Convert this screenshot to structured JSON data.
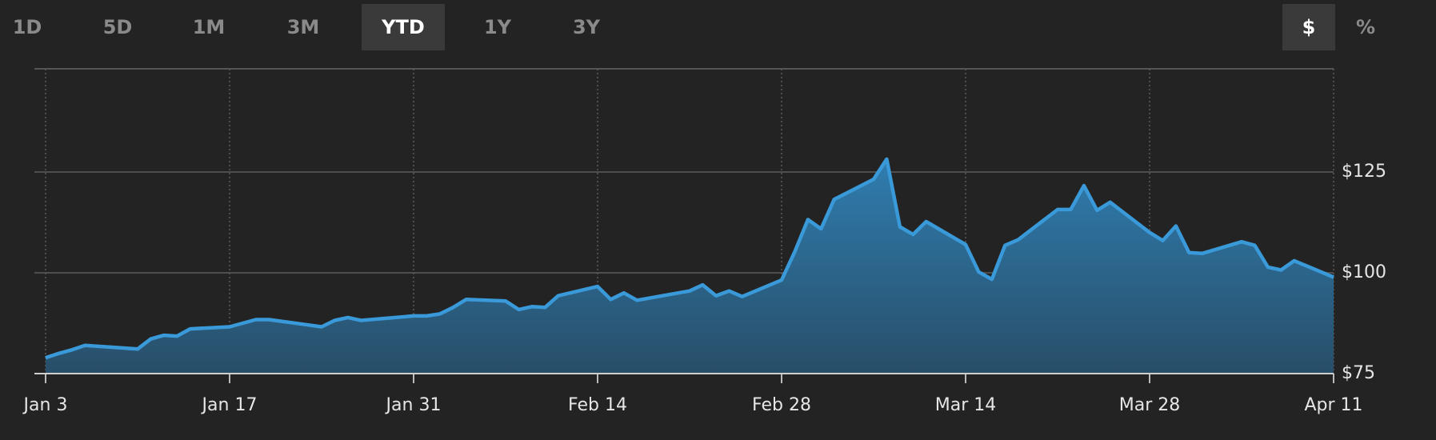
{
  "controls": {
    "ranges": [
      "1D",
      "5D",
      "1M",
      "3M",
      "YTD",
      "1Y",
      "3Y"
    ],
    "selected_range": "YTD",
    "units": [
      "$",
      "%"
    ],
    "selected_unit": "$"
  },
  "chart_data": {
    "type": "area",
    "color": "#3a9ad9",
    "x": [
      0,
      1,
      2,
      3,
      7,
      8,
      9,
      10,
      11,
      14,
      16,
      17,
      21,
      22,
      23,
      24,
      28,
      29,
      30,
      31,
      32,
      35,
      36,
      37,
      38,
      39,
      42,
      43,
      44,
      45,
      49,
      50,
      51,
      52,
      53,
      56,
      57,
      58,
      59,
      60,
      63,
      64,
      65,
      66,
      67,
      70,
      71,
      72,
      73,
      74,
      77,
      78,
      79,
      80,
      81,
      84,
      85,
      86,
      87,
      88,
      91,
      92,
      93,
      94,
      95,
      98
    ],
    "values": [
      78.9,
      80,
      80.9,
      82,
      81.1,
      83.6,
      84.5,
      84.3,
      86.1,
      86.6,
      88.4,
      88.4,
      86.6,
      88.2,
      88.9,
      88.2,
      89.3,
      89.3,
      89.8,
      91.4,
      93.4,
      93,
      90.9,
      91.6,
      91.4,
      94.3,
      96.6,
      93.4,
      95,
      93.2,
      95.5,
      97,
      94.3,
      95.5,
      94.1,
      98.2,
      105.2,
      113.2,
      110.9,
      118.2,
      123.2,
      128.2,
      111.4,
      109.5,
      112.7,
      107,
      100.2,
      98.4,
      106.8,
      108.2,
      115.7,
      115.7,
      121.6,
      115.5,
      117.5,
      110,
      108,
      111.6,
      105,
      104.8,
      107.7,
      106.8,
      101.4,
      100.7,
      103,
      98.9
    ],
    "xlim": [
      0,
      98
    ],
    "xticks": [
      {
        "value": 0,
        "label": "Jan 3"
      },
      {
        "value": 14,
        "label": "Jan 17"
      },
      {
        "value": 28,
        "label": "Jan 31"
      },
      {
        "value": 42,
        "label": "Feb 14"
      },
      {
        "value": 56,
        "label": "Feb 28"
      },
      {
        "value": 70,
        "label": "Mar 14"
      },
      {
        "value": 84,
        "label": "Mar 28"
      },
      {
        "value": 98,
        "label": "Apr 11"
      }
    ],
    "ylim": [
      75,
      150
    ],
    "yticks": [
      {
        "value": 75,
        "label": "$75"
      },
      {
        "value": 100,
        "label": "$100"
      },
      {
        "value": 125,
        "label": "$125"
      }
    ],
    "grid": true
  }
}
